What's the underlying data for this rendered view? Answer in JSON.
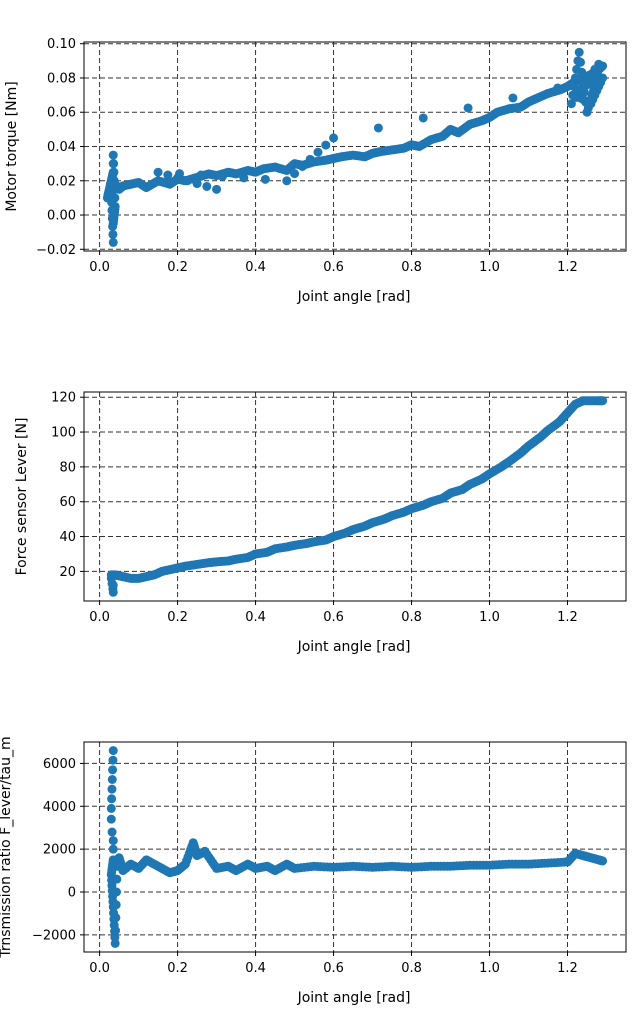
{
  "chart_data": [
    {
      "type": "scatter",
      "xlabel": "Joint angle [rad]",
      "ylabel": "Motor torque [Nm]",
      "xlim": [
        -0.04,
        1.35
      ],
      "ylim": [
        -0.021,
        0.101
      ],
      "xticks": [
        0.0,
        0.2,
        0.4,
        0.6,
        0.8,
        1.0,
        1.2
      ],
      "xtick_labels": [
        "0.0",
        "0.2",
        "0.4",
        "0.6",
        "0.8",
        "1.0",
        "1.2"
      ],
      "yticks": [
        -0.02,
        0.0,
        0.02,
        0.04,
        0.06,
        0.08,
        0.1
      ],
      "ytick_labels": [
        "−0.02",
        "0.00",
        "0.02",
        "0.04",
        "0.06",
        "0.08",
        "0.10"
      ],
      "grid": true,
      "color": "#1f77b4",
      "series": [
        {
          "x": [
            0.02,
            0.025,
            0.03,
            0.035,
            0.035,
            0.035,
            0.04,
            0.035,
            0.035,
            0.03,
            0.04,
            0.05,
            0.06,
            0.08,
            0.1,
            0.12,
            0.15,
            0.18,
            0.2,
            0.22,
            0.25,
            0.28,
            0.3,
            0.33,
            0.35,
            0.38,
            0.4,
            0.42,
            0.45,
            0.48,
            0.5,
            0.52,
            0.55,
            0.58,
            0.6,
            0.62,
            0.65,
            0.68,
            0.7,
            0.72,
            0.75,
            0.78,
            0.8,
            0.82,
            0.85,
            0.88,
            0.9,
            0.92,
            0.95,
            0.98,
            1.0,
            1.02,
            1.05,
            1.08,
            1.1,
            1.12,
            1.15,
            1.18,
            1.2,
            1.22,
            1.24,
            1.26,
            1.28,
            1.29,
            1.21,
            1.23,
            1.25,
            1.27,
            1.28,
            1.22,
            1.26,
            1.29,
            0.6,
            0.48,
            0.15,
            0.3
          ],
          "y": [
            0.01,
            0.015,
            0.02,
            0.025,
            0.03,
            0.035,
            0.005,
            -0.005,
            -0.016,
            0.012,
            0.018,
            0.015,
            0.017,
            0.018,
            0.019,
            0.016,
            0.02,
            0.018,
            0.021,
            0.02,
            0.022,
            0.024,
            0.023,
            0.025,
            0.024,
            0.026,
            0.025,
            0.027,
            0.028,
            0.026,
            0.03,
            0.029,
            0.031,
            0.032,
            0.033,
            0.034,
            0.035,
            0.034,
            0.036,
            0.037,
            0.038,
            0.039,
            0.041,
            0.04,
            0.044,
            0.046,
            0.05,
            0.048,
            0.053,
            0.055,
            0.057,
            0.06,
            0.062,
            0.063,
            0.066,
            0.068,
            0.071,
            0.073,
            0.075,
            0.078,
            0.08,
            0.082,
            0.085,
            0.087,
            0.065,
            0.095,
            0.06,
            0.075,
            0.088,
            0.07,
            0.065,
            0.08,
            0.045,
            0.02,
            0.025,
            0.015
          ]
        }
      ]
    },
    {
      "type": "scatter",
      "xlabel": "Joint angle [rad]",
      "ylabel": "Force sensor Lever [N]",
      "xlim": [
        -0.04,
        1.35
      ],
      "ylim": [
        3,
        123
      ],
      "xticks": [
        0.0,
        0.2,
        0.4,
        0.6,
        0.8,
        1.0,
        1.2
      ],
      "xtick_labels": [
        "0.0",
        "0.2",
        "0.4",
        "0.6",
        "0.8",
        "1.0",
        "1.2"
      ],
      "yticks": [
        20,
        40,
        60,
        80,
        100,
        120
      ],
      "ytick_labels": [
        "20",
        "40",
        "60",
        "80",
        "100",
        "120"
      ],
      "grid": true,
      "color": "#1f77b4",
      "series": [
        {
          "x": [
            0.03,
            0.032,
            0.034,
            0.035,
            0.035,
            0.033,
            0.03,
            0.04,
            0.05,
            0.06,
            0.08,
            0.1,
            0.12,
            0.14,
            0.16,
            0.18,
            0.2,
            0.22,
            0.25,
            0.28,
            0.3,
            0.33,
            0.35,
            0.38,
            0.4,
            0.43,
            0.45,
            0.48,
            0.5,
            0.53,
            0.55,
            0.58,
            0.6,
            0.63,
            0.65,
            0.68,
            0.7,
            0.73,
            0.75,
            0.78,
            0.8,
            0.83,
            0.85,
            0.88,
            0.9,
            0.93,
            0.95,
            0.98,
            1.0,
            1.03,
            1.05,
            1.08,
            1.1,
            1.13,
            1.15,
            1.18,
            1.2,
            1.22,
            1.24,
            1.26,
            1.28,
            1.29
          ],
          "y": [
            16,
            13,
            10,
            8,
            12,
            17,
            18,
            18,
            17.5,
            17,
            16,
            16,
            17,
            18,
            20,
            21,
            22,
            23,
            24,
            25,
            25.5,
            26,
            27,
            28,
            30,
            31,
            33,
            34,
            35,
            36,
            37,
            38,
            40,
            42,
            44,
            46,
            48,
            50,
            52,
            54,
            56,
            58,
            60,
            62,
            65,
            67,
            70,
            73,
            76,
            80,
            83,
            88,
            92,
            97,
            101,
            106,
            111,
            116,
            118,
            118,
            118,
            118
          ]
        }
      ]
    },
    {
      "type": "scatter",
      "xlabel": "Joint angle [rad]",
      "ylabel": "Trnsmission ratio F_lever/tau_m",
      "xlim": [
        -0.04,
        1.35
      ],
      "ylim": [
        -2800,
        7000
      ],
      "xticks": [
        0.0,
        0.2,
        0.4,
        0.6,
        0.8,
        1.0,
        1.2
      ],
      "xtick_labels": [
        "0.0",
        "0.2",
        "0.4",
        "0.6",
        "0.8",
        "1.0",
        "1.2"
      ],
      "yticks": [
        -2000,
        0,
        2000,
        4000,
        6000
      ],
      "ytick_labels": [
        "−2000",
        "0",
        "2000",
        "4000",
        "6000"
      ],
      "grid": true,
      "color": "#1f77b4",
      "series": [
        {
          "x": [
            0.035,
            0.03,
            0.03,
            0.032,
            0.035,
            0.035,
            0.035,
            0.03,
            0.035,
            0.04,
            0.045,
            0.05,
            0.06,
            0.08,
            0.1,
            0.12,
            0.15,
            0.18,
            0.2,
            0.22,
            0.24,
            0.25,
            0.27,
            0.3,
            0.33,
            0.35,
            0.38,
            0.4,
            0.43,
            0.45,
            0.48,
            0.5,
            0.55,
            0.6,
            0.65,
            0.7,
            0.75,
            0.8,
            0.85,
            0.9,
            0.95,
            1.0,
            1.05,
            1.1,
            1.15,
            1.2,
            1.22,
            1.24,
            1.26,
            1.28,
            1.29
          ],
          "y": [
            6600,
            3900,
            3400,
            2800,
            2400,
            2000,
            1500,
            800,
            -700,
            -2400,
            1200,
            1600,
            1000,
            1300,
            1100,
            1500,
            1200,
            900,
            1000,
            1300,
            2300,
            1700,
            1900,
            1100,
            1200,
            1000,
            1300,
            1100,
            1200,
            1000,
            1300,
            1100,
            1200,
            1150,
            1200,
            1150,
            1200,
            1150,
            1200,
            1200,
            1250,
            1250,
            1300,
            1300,
            1350,
            1400,
            1800,
            1700,
            1600,
            1500,
            1450
          ]
        }
      ]
    }
  ]
}
